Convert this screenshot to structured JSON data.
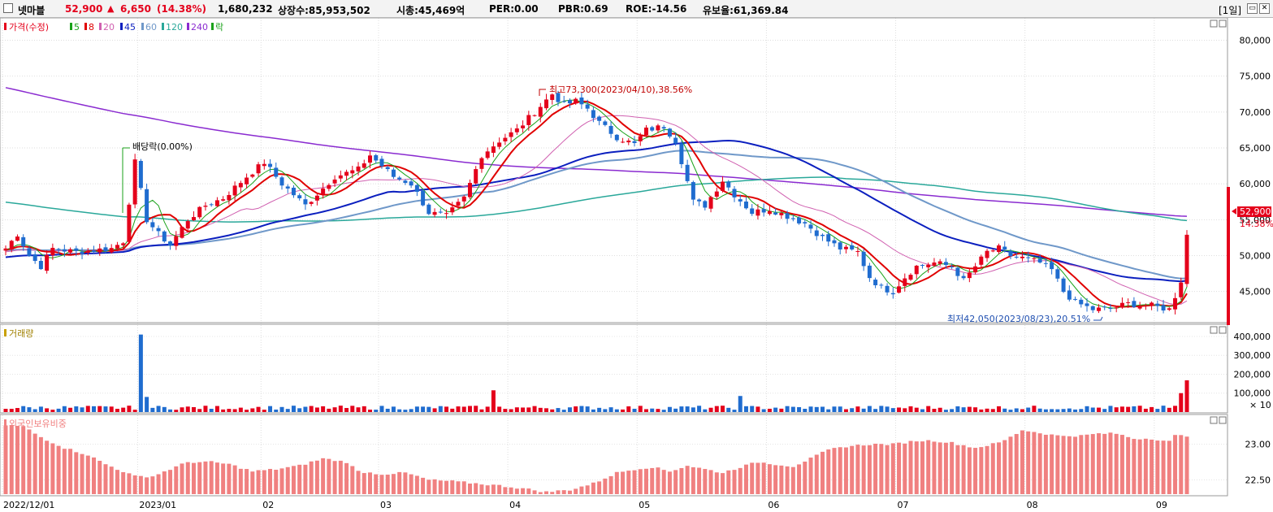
{
  "header": {
    "stock_name": "넷마블",
    "price": "52,900",
    "change_arrow": "▲",
    "change": "6,650",
    "change_pct": "(14.38%)",
    "volume": "1,680,232",
    "shares": "상장수:85,953,502",
    "market_cap": "시총:45,469억",
    "per": "PER:0.00",
    "pbr": "PBR:0.69",
    "roe": "ROE:-14.56",
    "float": "유보율:61,369.84",
    "period": "[1일]",
    "restore_icon": "restore-icon",
    "close_icon": "close-icon"
  },
  "chart_data": [
    {
      "type": "candlestick",
      "title": "가격(수정)",
      "legend": [
        "가격(수정)",
        "5",
        "8",
        "20",
        "45",
        "60",
        "120",
        "240",
        "락"
      ],
      "ylim": [
        41000,
        83000
      ],
      "y_ticks": [
        "80,000",
        "75,000",
        "70,000",
        "65,000",
        "60,000",
        "55,000",
        "50,000",
        "45,000"
      ],
      "x_ticks": [
        "2022/12/01",
        "2023/01",
        "02",
        "03",
        "04",
        "05",
        "06",
        "07",
        "08",
        "09"
      ],
      "last_price": "52,900",
      "last_pct": "14.38%",
      "annotations": {
        "high": "최고73,300(2023/04/10),38.56%",
        "low": "최저42,050(2023/08/23),20.51%",
        "dividend": "배당락(0.00%)"
      },
      "close_anchors": [
        [
          0,
          51000
        ],
        [
          2,
          53000
        ],
        [
          4,
          50000
        ],
        [
          6,
          48500
        ],
        [
          8,
          51000
        ],
        [
          12,
          50500
        ],
        [
          18,
          51000
        ],
        [
          20,
          52000
        ],
        [
          22,
          63000
        ],
        [
          24,
          55000
        ],
        [
          26,
          53000
        ],
        [
          28,
          51500
        ],
        [
          31,
          55000
        ],
        [
          34,
          57000
        ],
        [
          37,
          58000
        ],
        [
          39,
          59500
        ],
        [
          41,
          61000
        ],
        [
          44,
          63000
        ],
        [
          47,
          60000
        ],
        [
          51,
          57000
        ],
        [
          56,
          61000
        ],
        [
          60,
          62000
        ],
        [
          62,
          64000
        ],
        [
          66,
          61000
        ],
        [
          69,
          60000
        ],
        [
          72,
          56000
        ],
        [
          75,
          55500
        ],
        [
          78,
          58000
        ],
        [
          81,
          64000
        ],
        [
          84,
          66000
        ],
        [
          87,
          67500
        ],
        [
          90,
          70000
        ],
        [
          93,
          72500
        ],
        [
          95,
          71000
        ],
        [
          97,
          71500
        ],
        [
          99,
          70500
        ],
        [
          101,
          68500
        ],
        [
          104,
          66500
        ],
        [
          107,
          65500
        ],
        [
          109,
          67500
        ],
        [
          112,
          68000
        ],
        [
          114,
          66000
        ],
        [
          117,
          57500
        ],
        [
          119,
          57000
        ],
        [
          122,
          60500
        ],
        [
          124,
          58500
        ],
        [
          127,
          56000
        ],
        [
          130,
          56500
        ],
        [
          133,
          55500
        ],
        [
          136,
          54500
        ],
        [
          139,
          52500
        ],
        [
          142,
          51000
        ],
        [
          145,
          50500
        ],
        [
          147,
          47000
        ],
        [
          149,
          45500
        ],
        [
          151,
          45000
        ],
        [
          153,
          47000
        ],
        [
          155,
          48500
        ],
        [
          158,
          49000
        ],
        [
          161,
          48500
        ],
        [
          163,
          46500
        ],
        [
          165,
          48500
        ],
        [
          167,
          50500
        ],
        [
          169,
          51000
        ],
        [
          171,
          50000
        ],
        [
          174,
          49500
        ],
        [
          176,
          49000
        ],
        [
          178,
          48000
        ],
        [
          180,
          45000
        ],
        [
          182,
          43500
        ],
        [
          185,
          42500
        ],
        [
          188,
          42600
        ],
        [
          191,
          43300
        ],
        [
          195,
          43000
        ],
        [
          198,
          42500
        ],
        [
          200,
          46250
        ],
        [
          201,
          52900
        ]
      ],
      "candles": 202
    },
    {
      "type": "bar",
      "title": "거래량",
      "y_ticks": [
        "400,000",
        "300,000",
        "200,000",
        "100,000"
      ],
      "unit": "× 10",
      "spikes": [
        [
          23,
          410000
        ],
        [
          24,
          80000
        ],
        [
          83,
          115000
        ],
        [
          125,
          85000
        ],
        [
          200,
          100000
        ],
        [
          201,
          168000
        ]
      ]
    },
    {
      "type": "bar",
      "title": "외국인보유비중",
      "y_ticks": [
        "23.00",
        "22.50"
      ],
      "ylim": [
        22.3,
        23.35
      ],
      "value_anchors": [
        [
          0,
          23.27
        ],
        [
          3,
          23.25
        ],
        [
          6,
          23.1
        ],
        [
          10,
          22.95
        ],
        [
          14,
          22.85
        ],
        [
          17,
          22.72
        ],
        [
          22,
          22.55
        ],
        [
          25,
          22.55
        ],
        [
          28,
          22.65
        ],
        [
          31,
          22.75
        ],
        [
          35,
          22.75
        ],
        [
          38,
          22.72
        ],
        [
          42,
          22.62
        ],
        [
          46,
          22.65
        ],
        [
          50,
          22.7
        ],
        [
          54,
          22.8
        ],
        [
          58,
          22.75
        ],
        [
          60,
          22.62
        ],
        [
          64,
          22.58
        ],
        [
          68,
          22.6
        ],
        [
          72,
          22.5
        ],
        [
          76,
          22.48
        ],
        [
          80,
          22.45
        ],
        [
          84,
          22.42
        ],
        [
          88,
          22.38
        ],
        [
          92,
          22.33
        ],
        [
          96,
          22.36
        ],
        [
          100,
          22.45
        ],
        [
          104,
          22.6
        ],
        [
          107,
          22.65
        ],
        [
          110,
          22.68
        ],
        [
          113,
          22.62
        ],
        [
          116,
          22.7
        ],
        [
          119,
          22.65
        ],
        [
          122,
          22.6
        ],
        [
          125,
          22.68
        ],
        [
          128,
          22.75
        ],
        [
          131,
          22.72
        ],
        [
          134,
          22.69
        ],
        [
          137,
          22.8
        ],
        [
          140,
          22.92
        ],
        [
          143,
          22.97
        ],
        [
          147,
          23.0
        ],
        [
          151,
          23.0
        ],
        [
          155,
          23.05
        ],
        [
          158,
          23.05
        ],
        [
          161,
          23.02
        ],
        [
          165,
          22.95
        ],
        [
          169,
          23.02
        ],
        [
          171,
          23.1
        ],
        [
          173,
          23.2
        ],
        [
          176,
          23.16
        ],
        [
          179,
          23.12
        ],
        [
          183,
          23.12
        ],
        [
          186,
          23.15
        ],
        [
          189,
          23.15
        ],
        [
          192,
          23.08
        ],
        [
          195,
          23.08
        ],
        [
          198,
          23.04
        ],
        [
          199,
          23.12
        ],
        [
          201,
          23.12
        ]
      ]
    }
  ],
  "series_labels": {
    "price_label": "가격(수정)",
    "ma5": "5",
    "ma8": "8",
    "ma20": "20",
    "ma45": "45",
    "ma60": "60",
    "ma120": "120",
    "ma240": "240",
    "ex_div": "락",
    "volume_label": "거래량",
    "foreign_label": "외국인보유비중"
  },
  "colors": {
    "up": "#e4001b",
    "down": "#1f6ccf",
    "ma5": "#1aa21a",
    "ma8": "#e00000",
    "ma20": "#d060b0",
    "ma45": "#0b1fbf",
    "ma60": "#6f98c9",
    "ma120": "#2aa89a",
    "ma240": "#8a2bd0",
    "foreign_bar": "#f08080"
  }
}
